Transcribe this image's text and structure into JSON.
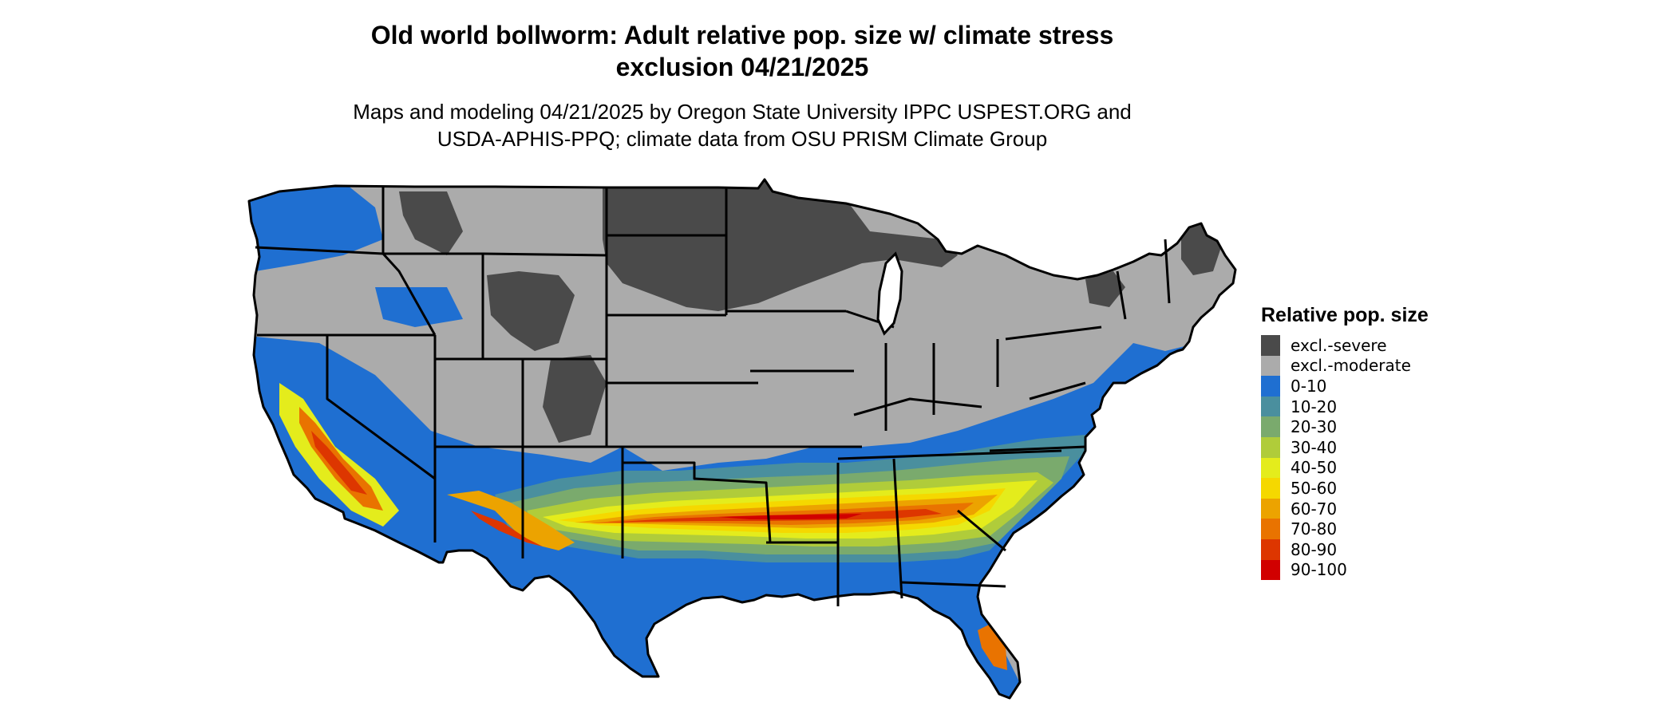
{
  "title": {
    "line1": "Old world bollworm: Adult relative pop. size w/ climate stress",
    "line2": "exclusion 04/21/2025"
  },
  "subtitle": {
    "line1": "Maps and modeling 04/21/2025 by Oregon State University IPPC USPEST.ORG and",
    "line2": "USDA-APHIS-PPQ; climate data from OSU PRISM Climate Group"
  },
  "map": {
    "region": "contiguous-united-states",
    "state_border_color": "#000000",
    "zones": [
      {
        "category": "excl.-severe",
        "color": "#4a4a4a"
      },
      {
        "category": "excl.-moderate",
        "color": "#ababab"
      },
      {
        "category": "0-10",
        "color": "#1f6fd1"
      },
      {
        "category": "10-20",
        "color": "#4a8f9e"
      },
      {
        "category": "20-30",
        "color": "#7aaa6d"
      },
      {
        "category": "30-40",
        "color": "#b0cc3a"
      },
      {
        "category": "40-50",
        "color": "#e4ec1c"
      },
      {
        "category": "50-60",
        "color": "#f5d800"
      },
      {
        "category": "60-70",
        "color": "#eca300"
      },
      {
        "category": "70-80",
        "color": "#e97300"
      },
      {
        "category": "80-90",
        "color": "#dd3600"
      },
      {
        "category": "90-100",
        "color": "#d10000"
      }
    ]
  },
  "legend": {
    "title": "Relative pop. size",
    "items": [
      {
        "label": "excl.-severe",
        "color": "#4a4a4a"
      },
      {
        "label": "excl.-moderate",
        "color": "#ababab"
      },
      {
        "label": "0-10",
        "color": "#1f6fd1"
      },
      {
        "label": "10-20",
        "color": "#4a8f9e"
      },
      {
        "label": "20-30",
        "color": "#7aaa6d"
      },
      {
        "label": "30-40",
        "color": "#b0cc3a"
      },
      {
        "label": "40-50",
        "color": "#e4ec1c"
      },
      {
        "label": "50-60",
        "color": "#f5d800"
      },
      {
        "label": "60-70",
        "color": "#eca300"
      },
      {
        "label": "70-80",
        "color": "#e97300"
      },
      {
        "label": "80-90",
        "color": "#dd3600"
      },
      {
        "label": "90-100",
        "color": "#d10000"
      }
    ]
  }
}
